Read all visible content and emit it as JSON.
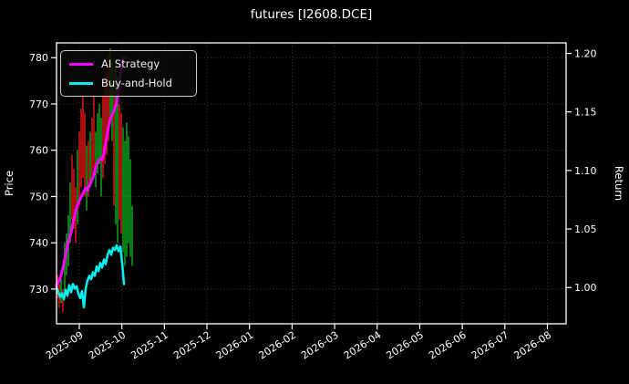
{
  "title": "futures [I2608.DCE]",
  "colors": {
    "background": "#000000",
    "foreground": "#ffffff",
    "grid": "rgba(255,255,255,0.30)",
    "ai_strategy": "#ff00ff",
    "buy_and_hold": "#00eeee",
    "candle_up": "#0ca41c",
    "candle_down": "#e01414"
  },
  "legend": {
    "items": [
      {
        "label": "AI Strategy",
        "color": "#ff00ff"
      },
      {
        "label": "Buy-and-Hold",
        "color": "#00eeee"
      }
    ]
  },
  "chart_data": {
    "type": "line+candlestick",
    "title": "futures [I2608.DCE]",
    "grid": true,
    "legend_position": "upper-left",
    "left_axis": {
      "label": "Price",
      "ticks": [
        780,
        770,
        760,
        750,
        740,
        730
      ],
      "range": [
        722.5,
        783.2
      ]
    },
    "right_axis": {
      "label": "Return",
      "ticks": [
        "1.20",
        "1.15",
        "1.10",
        "1.05",
        "1.00"
      ],
      "range": [
        0.969,
        1.209
      ]
    },
    "x_axis": {
      "ticks": [
        "2025-09",
        "2025-10",
        "2025-11",
        "2025-12",
        "2026-01",
        "2026-02",
        "2026-03",
        "2026-04",
        "2026-05",
        "2026-06",
        "2026-07",
        "2026-08"
      ],
      "visible_data_span": "late 2025-08 through mid 2025-10"
    },
    "candles": [
      {
        "low": 728,
        "high": 733,
        "dir": "down"
      },
      {
        "low": 726,
        "high": 731,
        "dir": "down"
      },
      {
        "low": 727,
        "high": 734,
        "dir": "up"
      },
      {
        "low": 725,
        "high": 730,
        "dir": "down"
      },
      {
        "low": 729,
        "high": 740,
        "dir": "up"
      },
      {
        "low": 733,
        "high": 742,
        "dir": "up"
      },
      {
        "low": 735,
        "high": 746,
        "dir": "up"
      },
      {
        "low": 740,
        "high": 753,
        "dir": "up"
      },
      {
        "low": 745,
        "high": 759,
        "dir": "down"
      },
      {
        "low": 743,
        "high": 756,
        "dir": "down"
      },
      {
        "low": 740,
        "high": 752,
        "dir": "down"
      },
      {
        "low": 744,
        "high": 760,
        "dir": "up"
      },
      {
        "low": 748,
        "high": 764,
        "dir": "down"
      },
      {
        "low": 752,
        "high": 769,
        "dir": "down"
      },
      {
        "low": 754,
        "high": 772,
        "dir": "down"
      },
      {
        "low": 750,
        "high": 768,
        "dir": "down"
      },
      {
        "low": 747,
        "high": 761,
        "dir": "up"
      },
      {
        "low": 750,
        "high": 762,
        "dir": "down"
      },
      {
        "low": 752,
        "high": 764,
        "dir": "up"
      },
      {
        "low": 754,
        "high": 767,
        "dir": "down"
      },
      {
        "low": 756,
        "high": 772,
        "dir": "down"
      },
      {
        "low": 752,
        "high": 764,
        "dir": "up"
      },
      {
        "low": 755,
        "high": 768,
        "dir": "up"
      },
      {
        "low": 757,
        "high": 770,
        "dir": "up"
      },
      {
        "low": 750,
        "high": 767,
        "dir": "up"
      },
      {
        "low": 754,
        "high": 772,
        "dir": "down"
      },
      {
        "low": 757,
        "high": 775,
        "dir": "down"
      },
      {
        "low": 759,
        "high": 777,
        "dir": "down"
      },
      {
        "low": 762,
        "high": 781,
        "dir": "down"
      },
      {
        "low": 766,
        "high": 782,
        "dir": "up"
      },
      {
        "low": 762,
        "high": 779,
        "dir": "up"
      },
      {
        "low": 748,
        "high": 778,
        "dir": "down"
      },
      {
        "low": 744,
        "high": 780,
        "dir": "up"
      },
      {
        "low": 740,
        "high": 776,
        "dir": "up"
      },
      {
        "low": 745,
        "high": 770,
        "dir": "down"
      },
      {
        "low": 742,
        "high": 768,
        "dir": "down"
      },
      {
        "low": 738,
        "high": 765,
        "dir": "up"
      },
      {
        "low": 735,
        "high": 762,
        "dir": "up"
      },
      {
        "low": 737,
        "high": 766,
        "dir": "up"
      },
      {
        "low": 740,
        "high": 763,
        "dir": "up"
      },
      {
        "low": 737,
        "high": 758,
        "dir": "up"
      },
      {
        "low": 735,
        "high": 748,
        "dir": "up"
      }
    ],
    "series": [
      {
        "name": "AI Strategy",
        "axis": "return",
        "color": "#ff00ff",
        "values": [
          1.002,
          1.004,
          1.008,
          1.013,
          1.02,
          1.028,
          1.036,
          1.042,
          1.047,
          1.055,
          1.062,
          1.068,
          1.072,
          1.076,
          1.079,
          1.082,
          1.085,
          1.083,
          1.088,
          1.09,
          1.094,
          1.1,
          1.105,
          1.108,
          1.11,
          1.109,
          1.115,
          1.124,
          1.133,
          1.141,
          1.146,
          1.149,
          1.153,
          1.158,
          1.168,
          1.181,
          1.193,
          1.196
        ]
      },
      {
        "name": "Buy-and-Hold",
        "axis": "return",
        "color": "#00eeee",
        "values": [
          1.0,
          0.996,
          0.992,
          0.995,
          0.99,
          0.998,
          0.993,
          1.002,
          0.996,
          1.003,
          0.999,
          1.001,
          0.995,
          0.991,
          0.997,
          0.983,
          0.999,
          1.006,
          1.01,
          1.007,
          1.013,
          1.01,
          1.018,
          1.014,
          1.021,
          1.017,
          1.024,
          1.02,
          1.028,
          1.032,
          1.028,
          1.034,
          1.032,
          1.036,
          1.031,
          1.035,
          1.021,
          1.003
        ]
      }
    ]
  }
}
